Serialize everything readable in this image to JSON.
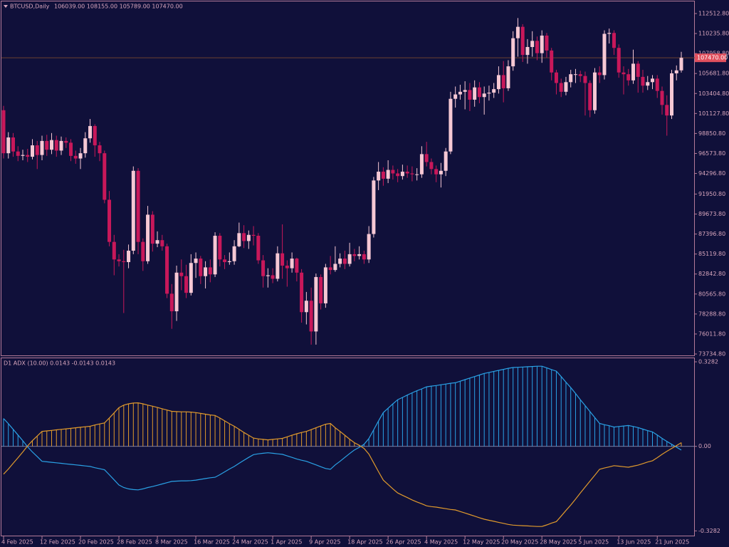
{
  "chart_data": [
    {
      "type": "candlestick",
      "title": "BTCUSD,Daily",
      "ohlc_text": "106039.00 108155.00 105789.00 107470.00",
      "up_color": "#f6c8d4",
      "down_color": "#c8185a",
      "categories": [
        "4 Feb 2025",
        null,
        null,
        null,
        null,
        null,
        null,
        null,
        "12 Feb 2025",
        null,
        null,
        null,
        null,
        null,
        null,
        null,
        "20 Feb 2025",
        null,
        null,
        null,
        null,
        null,
        null,
        null,
        "28 Feb 2025",
        null,
        null,
        null,
        null,
        null,
        null,
        null,
        "8 Mar 2025",
        null,
        null,
        null,
        null,
        null,
        null,
        null,
        "16 Mar 2025",
        null,
        null,
        null,
        null,
        null,
        null,
        null,
        "24 Mar 2025",
        null,
        null,
        null,
        null,
        null,
        null,
        null,
        "1 Apr 2025",
        null,
        null,
        null,
        null,
        null,
        null,
        null,
        "9 Apr 2025",
        null,
        null,
        null,
        null,
        null,
        null,
        null,
        "18 Apr 2025",
        null,
        null,
        null,
        null,
        null,
        null,
        null,
        "26 Apr 2025",
        null,
        null,
        null,
        null,
        null,
        null,
        null,
        "4 May 2025",
        null,
        null,
        null,
        null,
        null,
        null,
        null,
        "12 May 2025",
        null,
        null,
        null,
        null,
        null,
        null,
        null,
        "20 May 2025",
        null,
        null,
        null,
        null,
        null,
        null,
        null,
        "28 May 2025",
        null,
        null,
        null,
        null,
        null,
        null,
        null,
        "5 Jun 2025",
        null,
        null,
        null,
        null,
        null,
        null,
        null,
        "13 Jun 2025",
        null,
        null,
        null,
        null,
        null,
        null,
        null,
        "21 Jun 2025",
        null,
        null,
        null,
        null,
        null
      ],
      "open": [
        101500,
        96600,
        98400,
        96800,
        96300,
        96400,
        96200,
        97500,
        96400,
        98000,
        97000,
        98100,
        96900,
        98000,
        97800,
        96300,
        96000,
        96600,
        98300,
        99700,
        97500,
        96600,
        91300,
        86500,
        84500,
        84300,
        84200,
        85500,
        94600,
        86500,
        84300,
        89600,
        86300,
        86700,
        86000,
        80600,
        78600,
        83000,
        82600,
        80700,
        84100,
        84600,
        82600,
        83600,
        82800,
        87200,
        84500,
        84200,
        84300,
        86000,
        87500,
        86600,
        87300,
        87200,
        84400,
        82600,
        82700,
        82300,
        85200,
        83800,
        83500,
        84600,
        83000,
        78500,
        79800,
        76300,
        82500,
        79500,
        83600,
        83300,
        84000,
        84600,
        84000,
        85100,
        84900,
        85100,
        84500,
        87400,
        93500,
        94500,
        93700,
        94700,
        94300,
        94000,
        94500,
        94300,
        94200,
        94200,
        96500,
        95600,
        94800,
        94200,
        94600,
        96800,
        102800,
        103300,
        103600,
        103800,
        102700,
        104100,
        103000,
        103400,
        103500,
        103900,
        105500,
        104000,
        106500,
        109700,
        111000,
        107800,
        108700,
        109400,
        108000,
        110000,
        108300,
        105800,
        104600,
        103600,
        104700,
        105600,
        105600,
        105400,
        104600,
        101500,
        105800,
        105500,
        110200,
        110300,
        108600,
        105800,
        105600,
        104900,
        106800,
        105300,
        104300,
        104700,
        105100,
        103700,
        102100,
        100900,
        105700,
        106039
      ],
      "high": [
        102000,
        99000,
        98900,
        97400,
        97000,
        97100,
        98200,
        98000,
        98600,
        98700,
        98900,
        98600,
        98500,
        98400,
        98200,
        96900,
        97200,
        99000,
        100500,
        99900,
        97900,
        96900,
        92300,
        87300,
        85100,
        85600,
        86200,
        95100,
        94900,
        86900,
        90600,
        90000,
        87700,
        87300,
        86300,
        81700,
        83800,
        84500,
        83900,
        85100,
        85300,
        84900,
        84300,
        84500,
        87600,
        87500,
        85000,
        85300,
        86700,
        88700,
        88400,
        87800,
        88300,
        87500,
        85000,
        83500,
        83500,
        86000,
        88500,
        84400,
        85300,
        84700,
        83400,
        80800,
        81300,
        82900,
        82800,
        84000,
        84900,
        86000,
        85200,
        85500,
        86400,
        85700,
        86000,
        85500,
        88300,
        93900,
        95600,
        95000,
        95800,
        95200,
        94800,
        95300,
        95200,
        95100,
        94900,
        97400,
        97900,
        96000,
        95200,
        95500,
        97200,
        103600,
        104200,
        104400,
        104800,
        104600,
        104900,
        104700,
        104200,
        104300,
        104600,
        106500,
        107100,
        107200,
        110500,
        112000,
        111300,
        109600,
        110500,
        109900,
        110600,
        110300,
        108600,
        106100,
        105100,
        105300,
        106100,
        106200,
        106000,
        105900,
        104900,
        106300,
        106500,
        110600,
        110800,
        110600,
        109000,
        106500,
        106200,
        108400,
        107100,
        106100,
        105400,
        105500,
        105500,
        104200,
        103200,
        106100,
        106600,
        108155
      ],
      "low": [
        96000,
        96000,
        96200,
        95700,
        95800,
        95600,
        95900,
        94800,
        95800,
        96300,
        96500,
        96200,
        96400,
        97200,
        95700,
        95400,
        94800,
        96100,
        97800,
        96200,
        95700,
        90900,
        86000,
        82700,
        83700,
        78400,
        83500,
        85100,
        85100,
        83200,
        84000,
        85400,
        85900,
        85500,
        80100,
        76600,
        77500,
        81000,
        80100,
        80400,
        82400,
        81700,
        81200,
        81900,
        82500,
        83700,
        83400,
        83900,
        83900,
        85900,
        85800,
        85700,
        86100,
        84000,
        81300,
        81300,
        81800,
        82000,
        82300,
        81400,
        83000,
        82000,
        77300,
        77100,
        74800,
        74800,
        78800,
        79000,
        82800,
        83100,
        83600,
        83400,
        83700,
        84300,
        84500,
        84000,
        84100,
        87000,
        92400,
        92900,
        93200,
        93600,
        93300,
        93600,
        93800,
        93400,
        93500,
        93800,
        95100,
        94200,
        93300,
        92700,
        94000,
        96500,
        101800,
        102700,
        101600,
        101400,
        101900,
        102300,
        101000,
        102600,
        102900,
        103400,
        102400,
        103700,
        106000,
        107600,
        107000,
        106800,
        107600,
        107200,
        106900,
        107500,
        104900,
        103300,
        103000,
        103200,
        104100,
        104600,
        104700,
        100900,
        100700,
        101100,
        104600,
        105000,
        109100,
        107800,
        105200,
        103300,
        104300,
        104500,
        103500,
        103500,
        103800,
        103900,
        102900,
        101000,
        98600,
        100500,
        104900,
        105789
      ],
      "close": [
        96600,
        98400,
        96800,
        96300,
        96400,
        96200,
        97500,
        96400,
        98000,
        97000,
        98100,
        96900,
        98000,
        97800,
        96300,
        96000,
        96600,
        98300,
        99700,
        97500,
        96600,
        91300,
        86500,
        84500,
        84300,
        84200,
        85500,
        94600,
        86500,
        84300,
        89600,
        86300,
        86700,
        86000,
        80600,
        78600,
        83000,
        82600,
        80700,
        84100,
        84600,
        82600,
        83600,
        82800,
        87200,
        84500,
        84200,
        84300,
        86000,
        87500,
        86600,
        87300,
        87200,
        84400,
        82600,
        82700,
        82300,
        85200,
        83800,
        83500,
        84600,
        83000,
        78500,
        79800,
        76300,
        82500,
        79500,
        83600,
        83300,
        84000,
        84600,
        84000,
        85100,
        84900,
        85100,
        84500,
        87400,
        93500,
        94500,
        93700,
        94700,
        94300,
        94000,
        94500,
        94300,
        94200,
        94200,
        96500,
        95600,
        94800,
        94200,
        94600,
        96800,
        102800,
        103300,
        103600,
        103800,
        102700,
        104100,
        103000,
        103400,
        103500,
        103900,
        105500,
        104000,
        106500,
        109700,
        111000,
        107800,
        108700,
        109400,
        108000,
        110000,
        108300,
        105800,
        104600,
        103600,
        104700,
        105600,
        105600,
        105400,
        104600,
        101500,
        105800,
        105500,
        110200,
        110300,
        108600,
        105800,
        105600,
        104900,
        106800,
        105300,
        104300,
        104700,
        105100,
        103700,
        102100,
        100900,
        105700,
        106039,
        107470
      ],
      "last_price": {
        "value": 107470,
        "label": "107470.00"
      },
      "last_price_color": "#e0505e",
      "ylim": [
        73572,
        113811
      ],
      "yticks": [
        {
          "value": 112512.8,
          "label": "112512.80"
        },
        {
          "value": 110235.8,
          "label": "110235.80"
        },
        {
          "value": 107958.8,
          "label": "107958.80"
        },
        {
          "value": 105681.8,
          "label": "105681.80"
        },
        {
          "value": 103404.8,
          "label": "103404.80"
        },
        {
          "value": 101127.8,
          "label": "101127.80"
        },
        {
          "value": 98850.8,
          "label": "98850.80"
        },
        {
          "value": 96573.8,
          "label": "96573.80"
        },
        {
          "value": 94296.8,
          "label": "94296.80"
        },
        {
          "value": 91950.8,
          "label": "91950.80"
        },
        {
          "value": 89673.8,
          "label": "89673.80"
        },
        {
          "value": 87396.8,
          "label": "87396.80"
        },
        {
          "value": 85119.8,
          "label": "85119.80"
        },
        {
          "value": 82842.8,
          "label": "82842.80"
        },
        {
          "value": 80565.8,
          "label": "80565.80"
        },
        {
          "value": 78288.8,
          "label": "78288.80"
        },
        {
          "value": 76011.8,
          "label": "76011.80"
        },
        {
          "value": 73734.8,
          "label": "73734.80"
        }
      ]
    },
    {
      "type": "oscillator",
      "title": "D1 ADX (10.00) 0.0143 -0.0143 0.0143",
      "series": [
        {
          "color": "#2aa2e6",
          "values": [
            0.108,
            0.088,
            0.066,
            0.044,
            0.022,
            -0.002,
            -0.022,
            -0.04,
            -0.058,
            -0.06,
            -0.062,
            -0.064,
            -0.066,
            -0.068,
            -0.07,
            -0.072,
            -0.074,
            -0.076,
            -0.078,
            -0.083,
            -0.087,
            -0.091,
            -0.11,
            -0.13,
            -0.15,
            -0.16,
            -0.165,
            -0.168,
            -0.169,
            -0.165,
            -0.16,
            -0.156,
            -0.151,
            -0.146,
            -0.141,
            -0.136,
            -0.135,
            -0.134,
            -0.134,
            -0.133,
            -0.131,
            -0.128,
            -0.125,
            -0.122,
            -0.12,
            -0.11,
            -0.099,
            -0.088,
            -0.078,
            -0.066,
            -0.054,
            -0.043,
            -0.032,
            -0.029,
            -0.027,
            -0.025,
            -0.027,
            -0.029,
            -0.031,
            -0.037,
            -0.043,
            -0.049,
            -0.054,
            -0.058,
            -0.065,
            -0.072,
            -0.079,
            -0.086,
            -0.089,
            -0.072,
            -0.058,
            -0.043,
            -0.028,
            -0.014,
            -0.004,
            0.008,
            0.03,
            0.064,
            0.098,
            0.131,
            0.148,
            0.165,
            0.181,
            0.19,
            0.199,
            0.208,
            0.216,
            0.223,
            0.231,
            0.234,
            0.236,
            0.239,
            0.242,
            0.245,
            0.247,
            0.253,
            0.259,
            0.265,
            0.271,
            0.277,
            0.283,
            0.287,
            0.291,
            0.295,
            0.299,
            0.303,
            0.306,
            0.307,
            0.308,
            0.309,
            0.31,
            0.311,
            0.311,
            0.305,
            0.298,
            0.292,
            0.271,
            0.249,
            0.228,
            0.205,
            0.181,
            0.158,
            0.135,
            0.112,
            0.089,
            0.084,
            0.08,
            0.075,
            0.077,
            0.079,
            0.081,
            0.077,
            0.073,
            0.067,
            0.061,
            0.056,
            0.044,
            0.031,
            0.019,
            0.008,
            -0.003,
            -0.0143
          ]
        },
        {
          "color": "#e09a2c",
          "values": [
            -0.108,
            -0.088,
            -0.066,
            -0.044,
            -0.022,
            0.002,
            0.022,
            0.04,
            0.058,
            0.06,
            0.062,
            0.064,
            0.066,
            0.068,
            0.07,
            0.072,
            0.074,
            0.076,
            0.078,
            0.083,
            0.087,
            0.091,
            0.11,
            0.13,
            0.15,
            0.16,
            0.165,
            0.168,
            0.169,
            0.165,
            0.16,
            0.156,
            0.151,
            0.146,
            0.141,
            0.136,
            0.135,
            0.134,
            0.134,
            0.133,
            0.131,
            0.128,
            0.125,
            0.122,
            0.12,
            0.11,
            0.099,
            0.088,
            0.078,
            0.066,
            0.054,
            0.043,
            0.032,
            0.029,
            0.027,
            0.025,
            0.027,
            0.029,
            0.031,
            0.037,
            0.043,
            0.049,
            0.054,
            0.058,
            0.065,
            0.072,
            0.079,
            0.086,
            0.089,
            0.072,
            0.058,
            0.043,
            0.028,
            0.014,
            0.004,
            -0.008,
            -0.03,
            -0.064,
            -0.098,
            -0.131,
            -0.148,
            -0.165,
            -0.181,
            -0.19,
            -0.199,
            -0.208,
            -0.216,
            -0.223,
            -0.231,
            -0.234,
            -0.236,
            -0.239,
            -0.242,
            -0.245,
            -0.247,
            -0.253,
            -0.259,
            -0.265,
            -0.271,
            -0.277,
            -0.283,
            -0.287,
            -0.291,
            -0.295,
            -0.299,
            -0.303,
            -0.306,
            -0.307,
            -0.308,
            -0.309,
            -0.31,
            -0.311,
            -0.311,
            -0.305,
            -0.298,
            -0.292,
            -0.271,
            -0.249,
            -0.228,
            -0.205,
            -0.181,
            -0.158,
            -0.135,
            -0.112,
            -0.089,
            -0.084,
            -0.08,
            -0.075,
            -0.077,
            -0.079,
            -0.081,
            -0.077,
            -0.073,
            -0.067,
            -0.061,
            -0.056,
            -0.044,
            -0.031,
            -0.019,
            -0.008,
            0.003,
            0.0143
          ]
        }
      ],
      "ylim": [
        -0.341,
        0.342
      ],
      "yticks": [
        0.3282,
        {
          "value": 0,
          "label": "0.00"
        },
        -0.3282
      ]
    }
  ]
}
